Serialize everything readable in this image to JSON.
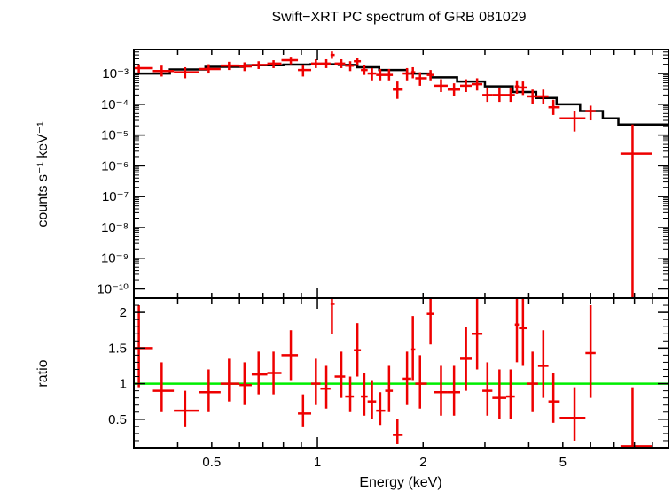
{
  "chart_data": [
    {
      "type": "step+errorbar",
      "panel": "spectrum",
      "title": "Swift−XRT PC spectrum of GRB 081029",
      "ylabel": "counts s⁻¹ keV⁻¹",
      "xscale": "log",
      "yscale": "log",
      "xlim": [
        0.3,
        10
      ],
      "ylim": [
        5e-11,
        0.006
      ],
      "y_ticks": [
        {
          "label": "10⁻³",
          "value": 0.001
        },
        {
          "label": "10⁻⁴",
          "value": 0.0001
        },
        {
          "label": "10⁻⁵",
          "value": 1e-05
        },
        {
          "label": "10⁻⁶",
          "value": 1e-06
        },
        {
          "label": "10⁻⁷",
          "value": 1e-07
        },
        {
          "label": "10⁻⁸",
          "value": 1e-08
        },
        {
          "label": "10⁻⁹",
          "value": 1e-09
        },
        {
          "label": "10⁻¹⁰",
          "value": 1e-10
        }
      ],
      "model_color": "#000000",
      "data_color": "#ee0000",
      "model": [
        [
          0.3,
          0.001
        ],
        [
          0.38,
          0.00135
        ],
        [
          0.48,
          0.00165
        ],
        [
          0.62,
          0.00185
        ],
        [
          0.8,
          0.00195
        ],
        [
          0.95,
          0.002
        ],
        [
          1.15,
          0.0019
        ],
        [
          1.3,
          0.0016
        ],
        [
          1.5,
          0.0013
        ],
        [
          1.8,
          0.001
        ],
        [
          2.1,
          0.00075
        ],
        [
          2.5,
          0.00055
        ],
        [
          3.0,
          0.00038
        ],
        [
          3.6,
          0.00025
        ],
        [
          4.2,
          0.00016
        ],
        [
          4.8,
          0.0001
        ],
        [
          5.6,
          6e-05
        ],
        [
          6.5,
          3.5e-05
        ],
        [
          7.2,
          2.2e-05
        ],
        [
          10.0,
          2.2e-05
        ]
      ],
      "points": [
        {
          "x": 0.31,
          "xlo": 0.3,
          "xhi": 0.34,
          "y": 0.0015,
          "ylo": 0.001,
          "yhi": 0.002
        },
        {
          "x": 0.36,
          "xlo": 0.34,
          "xhi": 0.39,
          "y": 0.0012,
          "ylo": 0.0008,
          "yhi": 0.0018
        },
        {
          "x": 0.42,
          "xlo": 0.39,
          "xhi": 0.46,
          "y": 0.0011,
          "ylo": 0.0007,
          "yhi": 0.0016
        },
        {
          "x": 0.49,
          "xlo": 0.46,
          "xhi": 0.53,
          "y": 0.0014,
          "ylo": 0.001,
          "yhi": 0.002
        },
        {
          "x": 0.56,
          "xlo": 0.53,
          "xhi": 0.6,
          "y": 0.0018,
          "ylo": 0.0013,
          "yhi": 0.0024
        },
        {
          "x": 0.62,
          "xlo": 0.6,
          "xhi": 0.65,
          "y": 0.0017,
          "ylo": 0.0012,
          "yhi": 0.0023
        },
        {
          "x": 0.68,
          "xlo": 0.65,
          "xhi": 0.72,
          "y": 0.0019,
          "ylo": 0.0014,
          "yhi": 0.0025
        },
        {
          "x": 0.75,
          "xlo": 0.72,
          "xhi": 0.79,
          "y": 0.0021,
          "ylo": 0.0015,
          "yhi": 0.0027
        },
        {
          "x": 0.84,
          "xlo": 0.79,
          "xhi": 0.88,
          "y": 0.0027,
          "ylo": 0.002,
          "yhi": 0.0035
        },
        {
          "x": 0.91,
          "xlo": 0.88,
          "xhi": 0.96,
          "y": 0.0013,
          "ylo": 0.0008,
          "yhi": 0.0019
        },
        {
          "x": 0.99,
          "xlo": 0.96,
          "xhi": 1.02,
          "y": 0.0021,
          "ylo": 0.0015,
          "yhi": 0.0029
        },
        {
          "x": 1.06,
          "xlo": 1.02,
          "xhi": 1.09,
          "y": 0.0021,
          "ylo": 0.0015,
          "yhi": 0.0029
        },
        {
          "x": 1.1,
          "xlo": 1.09,
          "xhi": 1.12,
          "y": 0.004,
          "ylo": 0.003,
          "yhi": 0.0052
        },
        {
          "x": 1.17,
          "xlo": 1.12,
          "xhi": 1.2,
          "y": 0.0021,
          "ylo": 0.0015,
          "yhi": 0.0029
        },
        {
          "x": 1.24,
          "xlo": 1.2,
          "xhi": 1.27,
          "y": 0.0018,
          "ylo": 0.0012,
          "yhi": 0.0025
        },
        {
          "x": 1.3,
          "xlo": 1.27,
          "xhi": 1.33,
          "y": 0.0025,
          "ylo": 0.0018,
          "yhi": 0.0033
        },
        {
          "x": 1.36,
          "xlo": 1.33,
          "xhi": 1.39,
          "y": 0.0013,
          "ylo": 0.0009,
          "yhi": 0.0019
        },
        {
          "x": 1.43,
          "xlo": 1.39,
          "xhi": 1.47,
          "y": 0.001,
          "ylo": 0.0006,
          "yhi": 0.0015
        },
        {
          "x": 1.51,
          "xlo": 1.47,
          "xhi": 1.56,
          "y": 0.0009,
          "ylo": 0.0006,
          "yhi": 0.0014
        },
        {
          "x": 1.6,
          "xlo": 1.56,
          "xhi": 1.64,
          "y": 0.0009,
          "ylo": 0.0006,
          "yhi": 0.0014
        },
        {
          "x": 1.69,
          "xlo": 1.64,
          "xhi": 1.75,
          "y": 0.0003,
          "ylo": 0.00015,
          "yhi": 0.00055
        },
        {
          "x": 1.8,
          "xlo": 1.75,
          "xhi": 1.85,
          "y": 0.001,
          "ylo": 0.0006,
          "yhi": 0.0015
        },
        {
          "x": 1.87,
          "xlo": 1.85,
          "xhi": 1.9,
          "y": 0.0011,
          "ylo": 0.0007,
          "yhi": 0.0016
        },
        {
          "x": 1.96,
          "xlo": 1.9,
          "xhi": 2.05,
          "y": 0.0007,
          "ylo": 0.0004,
          "yhi": 0.0011
        },
        {
          "x": 2.1,
          "xlo": 2.05,
          "xhi": 2.15,
          "y": 0.0009,
          "ylo": 0.0006,
          "yhi": 0.0013
        },
        {
          "x": 2.25,
          "xlo": 2.15,
          "xhi": 2.35,
          "y": 0.0004,
          "ylo": 0.00025,
          "yhi": 0.00065
        },
        {
          "x": 2.45,
          "xlo": 2.35,
          "xhi": 2.55,
          "y": 0.0003,
          "ylo": 0.00018,
          "yhi": 0.00048
        },
        {
          "x": 2.65,
          "xlo": 2.55,
          "xhi": 2.75,
          "y": 0.0004,
          "ylo": 0.00025,
          "yhi": 0.00065
        },
        {
          "x": 2.85,
          "xlo": 2.75,
          "xhi": 2.95,
          "y": 0.00045,
          "ylo": 0.00028,
          "yhi": 0.0007
        },
        {
          "x": 3.05,
          "xlo": 2.95,
          "xhi": 3.15,
          "y": 0.0002,
          "ylo": 0.00012,
          "yhi": 0.00035
        },
        {
          "x": 3.3,
          "xlo": 3.15,
          "xhi": 3.45,
          "y": 0.0002,
          "ylo": 0.00012,
          "yhi": 0.00035
        },
        {
          "x": 3.55,
          "xlo": 3.45,
          "xhi": 3.65,
          "y": 0.0002,
          "ylo": 0.00012,
          "yhi": 0.00035
        },
        {
          "x": 3.7,
          "xlo": 3.65,
          "xhi": 3.75,
          "y": 0.00038,
          "ylo": 0.00022,
          "yhi": 0.0006
        },
        {
          "x": 3.85,
          "xlo": 3.75,
          "xhi": 3.95,
          "y": 0.00035,
          "ylo": 0.0002,
          "yhi": 0.00055
        },
        {
          "x": 4.1,
          "xlo": 3.95,
          "xhi": 4.25,
          "y": 0.00018,
          "ylo": 0.0001,
          "yhi": 0.0003
        },
        {
          "x": 4.4,
          "xlo": 4.25,
          "xhi": 4.55,
          "y": 0.00018,
          "ylo": 0.0001,
          "yhi": 0.0003
        },
        {
          "x": 4.7,
          "xlo": 4.55,
          "xhi": 4.9,
          "y": 8e-05,
          "ylo": 4.5e-05,
          "yhi": 0.00014
        },
        {
          "x": 5.4,
          "xlo": 4.9,
          "xhi": 5.8,
          "y": 3.5e-05,
          "ylo": 1.3e-05,
          "yhi": 6e-05
        },
        {
          "x": 6.0,
          "xlo": 5.8,
          "xhi": 6.2,
          "y": 6e-05,
          "ylo": 3e-05,
          "yhi": 9e-05
        },
        {
          "x": 7.9,
          "xlo": 7.3,
          "xhi": 9.0,
          "y": 2.5e-06,
          "ylo": 3e-11,
          "yhi": 2.2e-05
        }
      ]
    },
    {
      "type": "errorbar",
      "panel": "ratio",
      "xlabel": "Energy (keV)",
      "ylabel": "ratio",
      "xscale": "log",
      "xlim": [
        0.3,
        10
      ],
      "ylim": [
        0.1,
        2.2
      ],
      "y_ticks": [
        {
          "label": "0.5",
          "value": 0.5
        },
        {
          "label": "1",
          "value": 1
        },
        {
          "label": "1.5",
          "value": 1.5
        },
        {
          "label": "2",
          "value": 2
        }
      ],
      "x_ticks": [
        {
          "label": "0.5",
          "value": 0.5
        },
        {
          "label": "1",
          "value": 1
        },
        {
          "label": "2",
          "value": 2
        },
        {
          "label": "5",
          "value": 5
        }
      ],
      "reference_line": {
        "y": 1,
        "color": "#00ee00"
      },
      "data_color": "#ee0000",
      "points": [
        {
          "x": 0.31,
          "xlo": 0.3,
          "xhi": 0.34,
          "y": 1.5,
          "ylo": 0.95,
          "yhi": 2.1
        },
        {
          "x": 0.36,
          "xlo": 0.34,
          "xhi": 0.39,
          "y": 0.9,
          "ylo": 0.6,
          "yhi": 1.3
        },
        {
          "x": 0.42,
          "xlo": 0.39,
          "xhi": 0.46,
          "y": 0.62,
          "ylo": 0.4,
          "yhi": 0.9
        },
        {
          "x": 0.49,
          "xlo": 0.46,
          "xhi": 0.53,
          "y": 0.88,
          "ylo": 0.6,
          "yhi": 1.2
        },
        {
          "x": 0.56,
          "xlo": 0.53,
          "xhi": 0.6,
          "y": 1.0,
          "ylo": 0.75,
          "yhi": 1.35
        },
        {
          "x": 0.62,
          "xlo": 0.6,
          "xhi": 0.65,
          "y": 0.98,
          "ylo": 0.7,
          "yhi": 1.3
        },
        {
          "x": 0.68,
          "xlo": 0.65,
          "xhi": 0.72,
          "y": 1.13,
          "ylo": 0.85,
          "yhi": 1.45
        },
        {
          "x": 0.75,
          "xlo": 0.72,
          "xhi": 0.79,
          "y": 1.15,
          "ylo": 0.85,
          "yhi": 1.45
        },
        {
          "x": 0.84,
          "xlo": 0.79,
          "xhi": 0.88,
          "y": 1.4,
          "ylo": 1.05,
          "yhi": 1.75
        },
        {
          "x": 0.91,
          "xlo": 0.88,
          "xhi": 0.96,
          "y": 0.58,
          "ylo": 0.4,
          "yhi": 0.85
        },
        {
          "x": 0.99,
          "xlo": 0.96,
          "xhi": 1.02,
          "y": 1.0,
          "ylo": 0.7,
          "yhi": 1.35
        },
        {
          "x": 1.06,
          "xlo": 1.02,
          "xhi": 1.09,
          "y": 0.93,
          "ylo": 0.65,
          "yhi": 1.25
        },
        {
          "x": 1.1,
          "xlo": 1.09,
          "xhi": 1.12,
          "y": 2.12,
          "ylo": 1.7,
          "yhi": 2.55
        },
        {
          "x": 1.17,
          "xlo": 1.12,
          "xhi": 1.2,
          "y": 1.1,
          "ylo": 0.8,
          "yhi": 1.45
        },
        {
          "x": 1.24,
          "xlo": 1.2,
          "xhi": 1.27,
          "y": 0.82,
          "ylo": 0.6,
          "yhi": 1.1
        },
        {
          "x": 1.3,
          "xlo": 1.27,
          "xhi": 1.33,
          "y": 1.47,
          "ylo": 1.1,
          "yhi": 1.85
        },
        {
          "x": 1.36,
          "xlo": 1.33,
          "xhi": 1.39,
          "y": 0.82,
          "ylo": 0.55,
          "yhi": 1.15
        },
        {
          "x": 1.43,
          "xlo": 1.39,
          "xhi": 1.47,
          "y": 0.75,
          "ylo": 0.5,
          "yhi": 1.05
        },
        {
          "x": 1.51,
          "xlo": 1.47,
          "xhi": 1.56,
          "y": 0.62,
          "ylo": 0.42,
          "yhi": 0.88
        },
        {
          "x": 1.6,
          "xlo": 1.56,
          "xhi": 1.64,
          "y": 0.9,
          "ylo": 0.6,
          "yhi": 1.25
        },
        {
          "x": 1.69,
          "xlo": 1.64,
          "xhi": 1.75,
          "y": 0.28,
          "ylo": 0.15,
          "yhi": 0.5
        },
        {
          "x": 1.8,
          "xlo": 1.75,
          "xhi": 1.85,
          "y": 1.07,
          "ylo": 0.7,
          "yhi": 1.45
        },
        {
          "x": 1.87,
          "xlo": 1.85,
          "xhi": 1.9,
          "y": 1.48,
          "ylo": 1.05,
          "yhi": 1.95
        },
        {
          "x": 1.96,
          "xlo": 1.9,
          "xhi": 2.05,
          "y": 1.0,
          "ylo": 0.65,
          "yhi": 1.4
        },
        {
          "x": 2.1,
          "xlo": 2.05,
          "xhi": 2.15,
          "y": 1.98,
          "ylo": 1.55,
          "yhi": 2.45
        },
        {
          "x": 2.25,
          "xlo": 2.15,
          "xhi": 2.35,
          "y": 0.88,
          "ylo": 0.55,
          "yhi": 1.25
        },
        {
          "x": 2.45,
          "xlo": 2.35,
          "xhi": 2.55,
          "y": 0.88,
          "ylo": 0.55,
          "yhi": 1.25
        },
        {
          "x": 2.65,
          "xlo": 2.55,
          "xhi": 2.75,
          "y": 1.35,
          "ylo": 0.9,
          "yhi": 1.8
        },
        {
          "x": 2.85,
          "xlo": 2.75,
          "xhi": 2.95,
          "y": 1.7,
          "ylo": 1.2,
          "yhi": 2.25
        },
        {
          "x": 3.05,
          "xlo": 2.95,
          "xhi": 3.15,
          "y": 0.9,
          "ylo": 0.55,
          "yhi": 1.3
        },
        {
          "x": 3.3,
          "xlo": 3.15,
          "xhi": 3.45,
          "y": 0.8,
          "ylo": 0.5,
          "yhi": 1.2
        },
        {
          "x": 3.55,
          "xlo": 3.45,
          "xhi": 3.65,
          "y": 0.82,
          "ylo": 0.5,
          "yhi": 1.2
        },
        {
          "x": 3.7,
          "xlo": 3.65,
          "xhi": 3.75,
          "y": 1.83,
          "ylo": 1.3,
          "yhi": 2.4
        },
        {
          "x": 3.85,
          "xlo": 3.75,
          "xhi": 3.95,
          "y": 1.78,
          "ylo": 1.25,
          "yhi": 2.35
        },
        {
          "x": 4.1,
          "xlo": 3.95,
          "xhi": 4.25,
          "y": 1.0,
          "ylo": 0.6,
          "yhi": 1.45
        },
        {
          "x": 4.4,
          "xlo": 4.25,
          "xhi": 4.55,
          "y": 1.25,
          "ylo": 0.8,
          "yhi": 1.75
        },
        {
          "x": 4.7,
          "xlo": 4.55,
          "xhi": 4.9,
          "y": 0.75,
          "ylo": 0.45,
          "yhi": 1.15
        },
        {
          "x": 5.4,
          "xlo": 4.9,
          "xhi": 5.8,
          "y": 0.52,
          "ylo": 0.2,
          "yhi": 0.95
        },
        {
          "x": 6.0,
          "xlo": 5.8,
          "xhi": 6.2,
          "y": 1.43,
          "ylo": 0.8,
          "yhi": 2.1
        },
        {
          "x": 7.9,
          "xlo": 7.3,
          "xhi": 9.0,
          "y": 0.12,
          "ylo": 0.0,
          "yhi": 0.95
        }
      ]
    }
  ]
}
